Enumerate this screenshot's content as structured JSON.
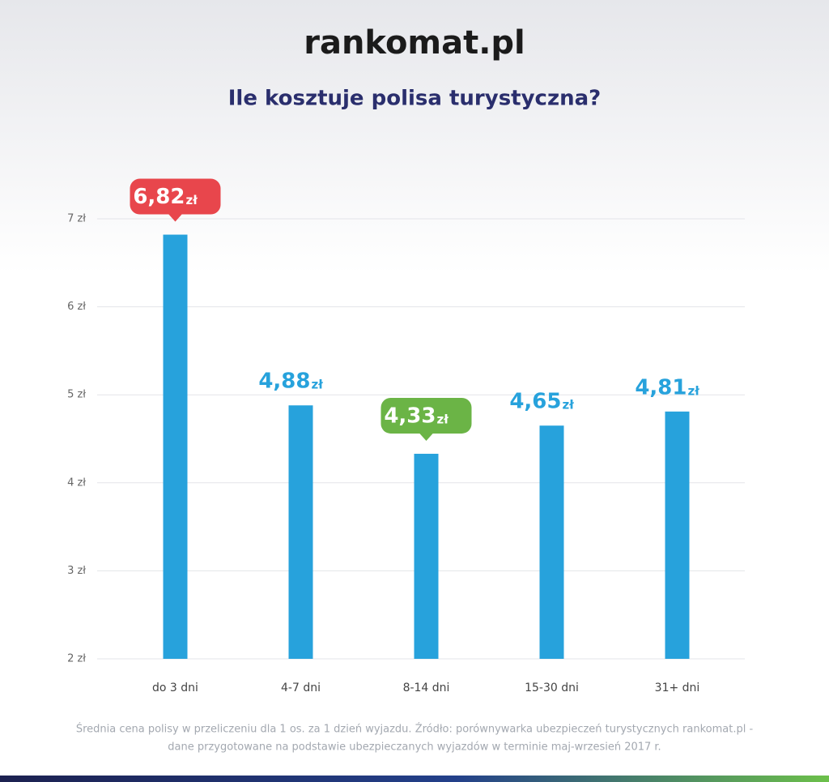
{
  "chart_data": {
    "type": "bar",
    "brand": "rankomat.pl",
    "title": "Ile kosztuje polisa turystyczna?",
    "categories": [
      "do 3 dni",
      "4-7 dni",
      "8-14 dni",
      "15-30 dni",
      "31+ dni"
    ],
    "values": [
      6.82,
      4.88,
      4.33,
      4.65,
      4.81
    ],
    "value_labels": [
      "6,82",
      "4,88",
      "4,33",
      "4,65",
      "4,81"
    ],
    "value_label_unit": "zł",
    "label_colors": [
      "#e8464c",
      "#27a2dc",
      "#6bb446",
      "#27a2dc",
      "#27a2dc"
    ],
    "label_badges": [
      true,
      false,
      true,
      false,
      false
    ],
    "color": "#27a2dc",
    "ylim": [
      2,
      7
    ],
    "yticks": [
      {
        "value": 2,
        "label": "2 zł"
      },
      {
        "value": 3,
        "label": "3 zł"
      },
      {
        "value": 4,
        "label": "4 zł"
      },
      {
        "value": 5,
        "label": "5 zł"
      },
      {
        "value": 6,
        "label": "6 zł"
      },
      {
        "value": 7,
        "label": "7 zł"
      }
    ],
    "grid": true,
    "footnote": [
      "Średnia cena polisy w przeliczeniu dla 1 os. za 1 dzień wyjazdu. Źródło: porównywarka ubezpieczeń turystycznych rankomat.pl -",
      "dane przygotowane na podstawie ubezpieczanych wyjazdów w terminie maj-wrzesień 2017 r."
    ]
  }
}
